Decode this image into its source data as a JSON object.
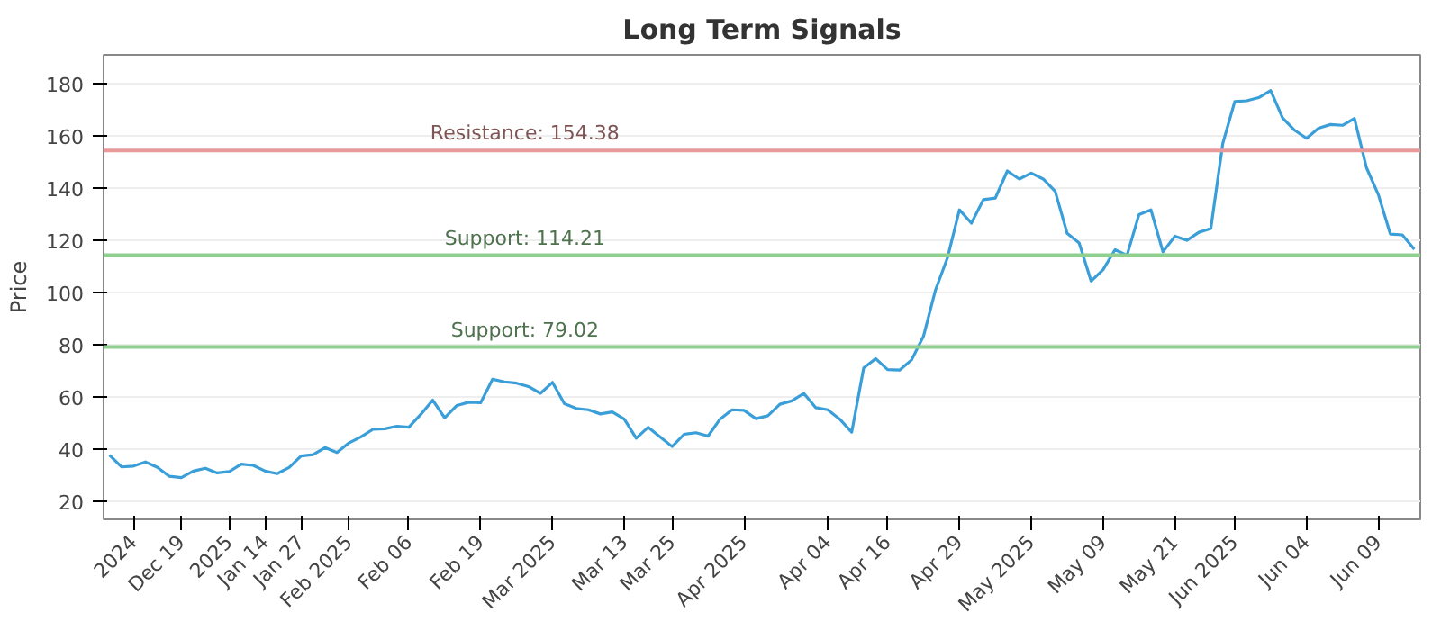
{
  "chart_data": {
    "type": "line",
    "title": "Long Term Signals",
    "ylabel": "Price",
    "categories": [
      null,
      null,
      "2024",
      null,
      null,
      null,
      "Dec 19",
      null,
      null,
      null,
      "2025",
      null,
      null,
      "Jan 14",
      null,
      null,
      "Jan 27",
      null,
      null,
      null,
      "Feb 2025",
      null,
      null,
      null,
      null,
      "Feb 06",
      null,
      null,
      null,
      null,
      null,
      "Feb 19",
      null,
      null,
      null,
      null,
      null,
      "Mar 2025",
      null,
      null,
      null,
      null,
      null,
      "Mar 13",
      null,
      null,
      null,
      "Mar 25",
      null,
      null,
      null,
      null,
      null,
      "Apr 2025",
      null,
      null,
      null,
      null,
      null,
      null,
      "Apr 04",
      null,
      null,
      null,
      null,
      "Apr 16",
      null,
      null,
      null,
      null,
      null,
      "Apr 29",
      null,
      null,
      null,
      null,
      null,
      "May 2025",
      null,
      null,
      null,
      null,
      null,
      "May 09",
      null,
      null,
      null,
      null,
      null,
      "May 21",
      null,
      null,
      null,
      null,
      "Jun 2025",
      null,
      null,
      null,
      null,
      null,
      "Jun 04",
      null,
      null,
      null,
      null,
      null,
      "Jun 09",
      null,
      null,
      null
    ],
    "series": [
      {
        "color": "#3a9fd8",
        "values": [
          37.6,
          33.1,
          33.4,
          35.0,
          32.9,
          29.5,
          29.0,
          31.5,
          32.6,
          30.8,
          31.3,
          34.2,
          33.7,
          31.5,
          30.5,
          32.9,
          37.3,
          37.8,
          40.5,
          38.6,
          42.3,
          44.6,
          47.5,
          47.7,
          48.7,
          48.3,
          53.2,
          58.7,
          51.9,
          56.6,
          57.9,
          57.7,
          66.7,
          65.7,
          65.2,
          63.9,
          61.3,
          65.5,
          57.3,
          55.5,
          55.0,
          53.4,
          54.2,
          51.4,
          44.1,
          48.3,
          44.6,
          40.9,
          45.6,
          46.2,
          44.9,
          51.4,
          55.0,
          54.8,
          51.6,
          52.7,
          57.1,
          58.4,
          61.3,
          55.8,
          55.0,
          51.4,
          46.4,
          71.0,
          74.6,
          70.4,
          70.2,
          74.1,
          83.2,
          100.9,
          113.2,
          131.6,
          126.5,
          135.5,
          136.1,
          146.5,
          143.4,
          145.7,
          143.4,
          138.7,
          122.6,
          118.9,
          104.3,
          108.7,
          116.3,
          114.2,
          129.8,
          131.6,
          115.5,
          121.5,
          119.9,
          123.0,
          124.4,
          157.0,
          173.1,
          173.4,
          174.6,
          177.3,
          166.8,
          162.1,
          159.0,
          162.9,
          164.3,
          164.0,
          166.6,
          147.8,
          137.4,
          122.3,
          122.0,
          116.5
        ]
      }
    ],
    "ylim": [
      13,
      191
    ],
    "yticks": [
      20,
      40,
      60,
      80,
      100,
      120,
      140,
      160,
      180
    ],
    "grid": "y",
    "line_style": "solid",
    "ref_lines": [
      {
        "axis": "y",
        "value": 154.38,
        "label": "Resistance: 154.38",
        "color": "#e89a9a"
      },
      {
        "axis": "y",
        "value": 114.21,
        "label": "Support: 114.21",
        "color": "#8fcf8f"
      },
      {
        "axis": "y",
        "value": 79.02,
        "label": "Support: 79.02",
        "color": "#8fcf8f"
      }
    ]
  }
}
